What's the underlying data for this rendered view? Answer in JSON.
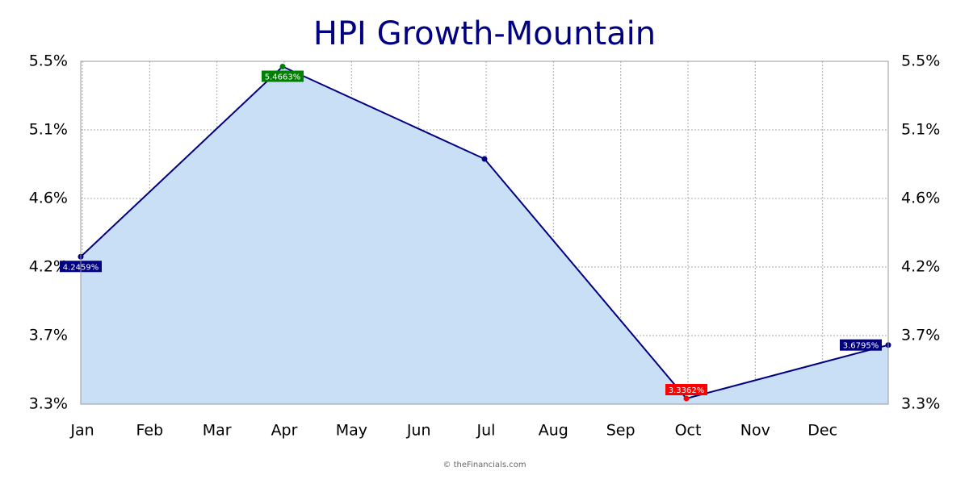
{
  "chart_data": {
    "type": "area",
    "title": "HPI Growth-Mountain",
    "footer": "© theFinancials.com",
    "x": [
      0,
      3,
      6,
      9,
      12
    ],
    "values": [
      4.2459,
      5.4663,
      4.8736,
      3.3362,
      3.6795
    ],
    "value_labels": [
      "4.2459%",
      "5.4663%",
      null,
      "3.3362%",
      "3.6795%"
    ],
    "label_colors": [
      "#000080",
      "#008000",
      null,
      "#ff0000",
      "#000080"
    ],
    "line_color": "#000080",
    "fill_color": "#c9dff5",
    "xlim": [
      0,
      12
    ],
    "xticks": [
      {
        "value": 0,
        "label": "Jan"
      },
      {
        "value": 1,
        "label": "Feb"
      },
      {
        "value": 2,
        "label": "Mar"
      },
      {
        "value": 3,
        "label": "Apr"
      },
      {
        "value": 4,
        "label": "May"
      },
      {
        "value": 5,
        "label": "Jun"
      },
      {
        "value": 6,
        "label": "Jul"
      },
      {
        "value": 7,
        "label": "Aug"
      },
      {
        "value": 8,
        "label": "Sep"
      },
      {
        "value": 9,
        "label": "Oct"
      },
      {
        "value": 10,
        "label": "Nov"
      },
      {
        "value": 11,
        "label": "Dec"
      }
    ],
    "ylim": [
      3.3,
      5.5
    ],
    "yticks": [
      {
        "value": 3.3,
        "label": "3.3%"
      },
      {
        "value": 3.74,
        "label": "3.7%"
      },
      {
        "value": 4.18,
        "label": "4.2%"
      },
      {
        "value": 4.62,
        "label": "4.6%"
      },
      {
        "value": 5.06,
        "label": "5.1%"
      },
      {
        "value": 5.5,
        "label": "5.5%"
      }
    ],
    "grid": true
  }
}
